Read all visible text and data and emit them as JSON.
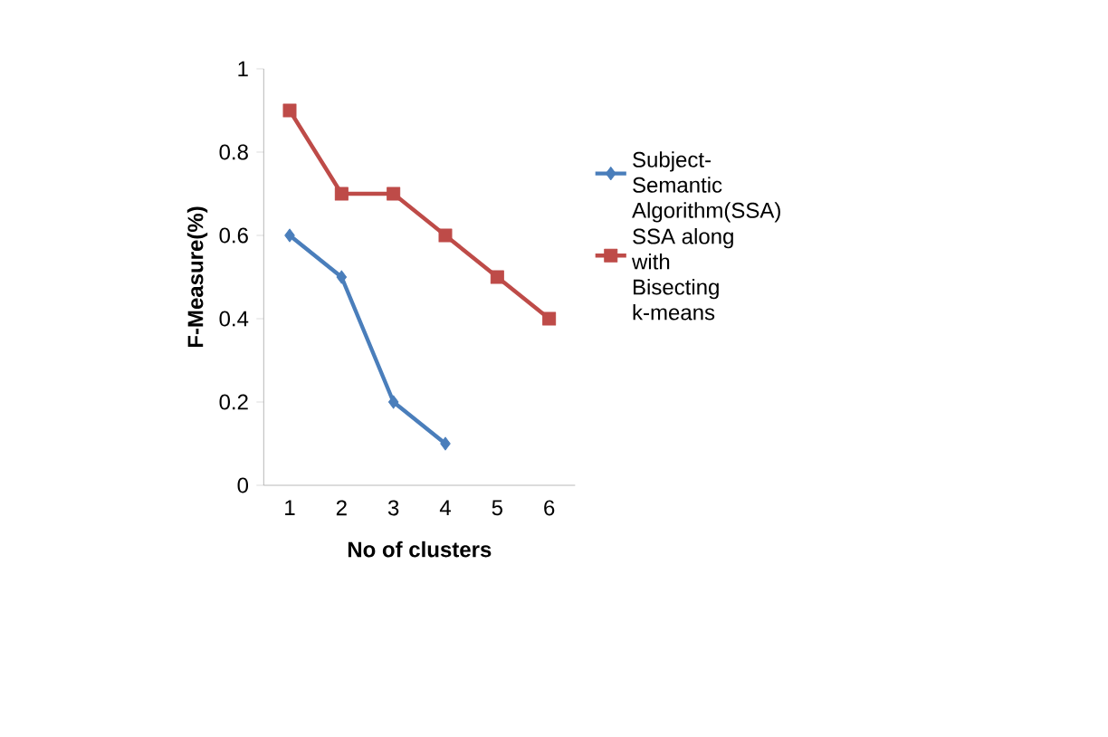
{
  "chart_data": {
    "type": "line",
    "xlabel": "No of clusters",
    "ylabel": "F-Measure(%)",
    "categories": [
      "1",
      "2",
      "3",
      "4",
      "5",
      "6"
    ],
    "series": [
      {
        "name": "Subject-Semantic Algorithm(SSA)",
        "color": "#4a7ebb",
        "marker": "diamond",
        "values": [
          0.6,
          0.5,
          0.2,
          0.1,
          null,
          null
        ]
      },
      {
        "name": "SSA along with Bisecting k-means",
        "color": "#be4b48",
        "marker": "square",
        "values": [
          0.9,
          0.7,
          0.7,
          0.6,
          0.5,
          0.4
        ]
      }
    ],
    "ylim": [
      0,
      1
    ],
    "yticks": [
      0,
      0.2,
      0.4,
      0.6,
      0.8,
      1
    ],
    "grid": false,
    "legend": "right"
  }
}
